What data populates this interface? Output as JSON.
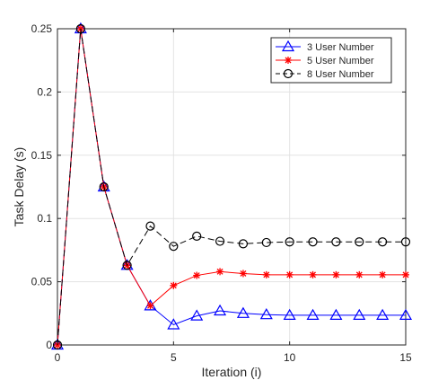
{
  "chart_data": {
    "type": "line",
    "title": "",
    "xlabel": "Iteration (i)",
    "ylabel": "Task Delay (s)",
    "xlim": [
      0,
      15
    ],
    "ylim": [
      0,
      0.25
    ],
    "xticks": [
      0,
      5,
      10,
      15
    ],
    "yticks": [
      0,
      0.05,
      0.1,
      0.15,
      0.2,
      0.25
    ],
    "xtick_labels": [
      "0",
      "5",
      "10",
      "15"
    ],
    "ytick_labels": [
      "0",
      "0.05",
      "0.1",
      "0.15",
      "0.2",
      "0.25"
    ],
    "grid": true,
    "legend_position": "top-right",
    "x": [
      0,
      1,
      2,
      3,
      4,
      5,
      6,
      7,
      8,
      9,
      10,
      11,
      12,
      13,
      14,
      15
    ],
    "series": [
      {
        "name": "3 User Number",
        "color": "#0000ff",
        "marker": "triangle",
        "line_style": "solid",
        "values": [
          0,
          0.25,
          0.125,
          0.063,
          0.031,
          0.016,
          0.023,
          0.027,
          0.025,
          0.024,
          0.0235,
          0.0235,
          0.0235,
          0.0235,
          0.0235,
          0.0235
        ]
      },
      {
        "name": "5 User Number",
        "color": "#ff0000",
        "marker": "asterisk",
        "line_style": "solid",
        "values": [
          0,
          0.25,
          0.125,
          0.063,
          0.031,
          0.047,
          0.055,
          0.058,
          0.0565,
          0.0555,
          0.0555,
          0.0555,
          0.0555,
          0.0555,
          0.0555,
          0.0555
        ]
      },
      {
        "name": "8 User Number",
        "color": "#000000",
        "marker": "circle",
        "line_style": "dashed",
        "values": [
          0,
          0.25,
          0.125,
          0.063,
          0.094,
          0.078,
          0.086,
          0.082,
          0.08,
          0.081,
          0.0815,
          0.0815,
          0.0815,
          0.0815,
          0.0815,
          0.0815
        ]
      }
    ]
  }
}
